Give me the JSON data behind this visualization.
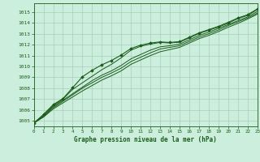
{
  "title": "Graphe pression niveau de la mer (hPa)",
  "bg_color": "#cceedd",
  "grid_color": "#aaccbb",
  "line_color": "#1a5c1a",
  "x_min": 0,
  "x_max": 23,
  "y_min": 1004.5,
  "y_max": 1015.8,
  "yticks": [
    1005,
    1006,
    1007,
    1008,
    1009,
    1010,
    1011,
    1012,
    1013,
    1014,
    1015
  ],
  "xticks": [
    0,
    1,
    2,
    3,
    4,
    5,
    6,
    7,
    8,
    9,
    10,
    11,
    12,
    13,
    14,
    15,
    16,
    17,
    18,
    19,
    20,
    21,
    22,
    23
  ],
  "line1": [
    1004.8,
    1005.5,
    1006.4,
    1007.0,
    1007.9,
    1008.5,
    1009.1,
    1009.7,
    1010.2,
    1010.8,
    1011.5,
    1011.85,
    1012.05,
    1012.2,
    1012.15,
    1012.22,
    1012.62,
    1013.02,
    1013.32,
    1013.62,
    1013.98,
    1014.38,
    1014.68,
    1015.22
  ],
  "line2": [
    1004.8,
    1005.5,
    1006.3,
    1006.9,
    1007.5,
    1008.1,
    1008.7,
    1009.2,
    1009.6,
    1010.1,
    1010.7,
    1011.1,
    1011.5,
    1011.8,
    1011.9,
    1012.05,
    1012.45,
    1012.85,
    1013.15,
    1013.5,
    1013.85,
    1014.2,
    1014.55,
    1015.05
  ],
  "line3": [
    1004.8,
    1005.4,
    1006.2,
    1006.8,
    1007.4,
    1008.0,
    1008.5,
    1009.0,
    1009.4,
    1009.85,
    1010.45,
    1010.85,
    1011.25,
    1011.6,
    1011.75,
    1011.9,
    1012.3,
    1012.7,
    1013.0,
    1013.35,
    1013.75,
    1014.1,
    1014.45,
    1014.9
  ],
  "line4": [
    1004.8,
    1005.35,
    1006.1,
    1006.65,
    1007.2,
    1007.75,
    1008.25,
    1008.75,
    1009.15,
    1009.6,
    1010.2,
    1010.6,
    1011.0,
    1011.35,
    1011.55,
    1011.75,
    1012.15,
    1012.55,
    1012.85,
    1013.2,
    1013.6,
    1013.95,
    1014.35,
    1014.8
  ],
  "marker_line": [
    1004.8,
    1005.6,
    1006.5,
    1007.05,
    1008.05,
    1009.05,
    1009.65,
    1010.15,
    1010.55,
    1011.05,
    1011.65,
    1011.95,
    1012.15,
    1012.25,
    1012.2,
    1012.28,
    1012.68,
    1013.08,
    1013.38,
    1013.68,
    1014.05,
    1014.45,
    1014.75,
    1015.28
  ]
}
